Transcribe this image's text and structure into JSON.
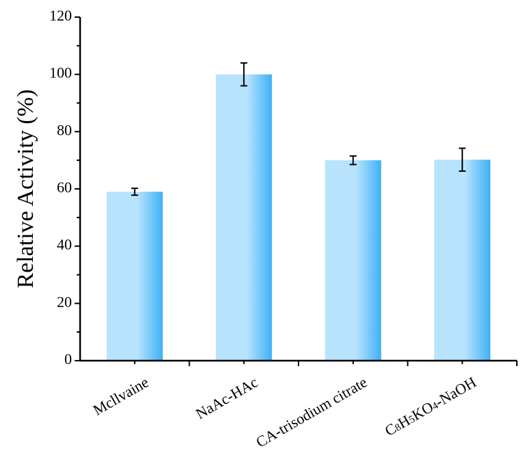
{
  "chart_data": {
    "type": "bar",
    "categories": [
      "Mcllvaine",
      "NaAc-HAc",
      "CA-trisodium citrate",
      "C8H5KO4-NaOH"
    ],
    "category_display": [
      [
        {
          "t": "Mcllvaine"
        }
      ],
      [
        {
          "t": "NaAc-HAc"
        }
      ],
      [
        {
          "t": "CA-trisodium citrate"
        }
      ],
      [
        {
          "t": "C"
        },
        {
          "t": "8",
          "sub": true
        },
        {
          "t": "H"
        },
        {
          "t": "5",
          "sub": true
        },
        {
          "t": "KO"
        },
        {
          "t": "4",
          "sub": true
        },
        {
          "t": "-NaOH"
        }
      ]
    ],
    "values": [
      59,
      100,
      70,
      70.2
    ],
    "errors": [
      1.2,
      4.0,
      1.5,
      4.0
    ],
    "ylabel": "Relative Activity (%)",
    "xlabel": "",
    "ylim": [
      0,
      120
    ],
    "yticks": [
      0,
      20,
      40,
      60,
      80,
      100,
      120
    ],
    "yticks_minor": [
      10,
      30,
      50,
      70,
      90,
      110
    ],
    "grid": false,
    "bar_color_light": "#b8e3fc",
    "bar_color_dark": "#3eb0f7"
  }
}
